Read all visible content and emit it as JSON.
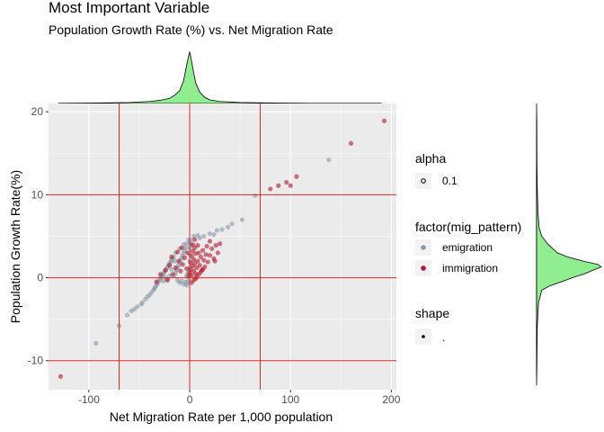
{
  "chart_data": {
    "type": "scatter",
    "title": "Most Important Variable",
    "subtitle": "Population Growth Rate (%) vs. Net Migration Rate",
    "xlabel": "Net Migration Rate per 1,000 population",
    "ylabel": "Population Growth Rate(%)",
    "xlim": [
      -140,
      205
    ],
    "ylim": [
      -13.5,
      21
    ],
    "x_ticks": [
      -100,
      0,
      100,
      200
    ],
    "y_ticks": [
      -10,
      0,
      10,
      20
    ],
    "grid": true,
    "reference_lines": {
      "vertical": [
        -70,
        0,
        70
      ],
      "horizontal": [
        0,
        10,
        -10
      ],
      "color": "#d62728"
    },
    "colors": {
      "emigration": "#8a97a6",
      "immigration": "#b2182b",
      "density_fill": "#90ee90",
      "panel": "#ebebeb"
    },
    "series": [
      {
        "name": "emigration",
        "points": [
          [
            -93,
            -7.9
          ],
          [
            -70,
            -5.8
          ],
          [
            -58,
            -4.0
          ],
          [
            -52,
            -3.5
          ],
          [
            -47,
            -3.0
          ],
          [
            -44,
            -2.6
          ],
          [
            -42,
            -2.3
          ],
          [
            -40,
            -2.1
          ],
          [
            -38,
            -1.8
          ],
          [
            -36,
            -1.5
          ],
          [
            -35,
            -1.3
          ],
          [
            -34,
            -1.1
          ],
          [
            -33,
            -0.9
          ],
          [
            -32,
            -0.7
          ],
          [
            -31,
            -0.5
          ],
          [
            -30,
            -0.3
          ],
          [
            -29,
            -0.1
          ],
          [
            -28,
            0.1
          ],
          [
            -27,
            0.3
          ],
          [
            -26,
            0.5
          ],
          [
            -25,
            0.7
          ],
          [
            -24,
            0.9
          ],
          [
            -23,
            1.1
          ],
          [
            -22,
            1.3
          ],
          [
            -21,
            1.5
          ],
          [
            -20,
            1.7
          ],
          [
            -19,
            1.9
          ],
          [
            -18,
            2.1
          ],
          [
            -17,
            2.3
          ],
          [
            -16,
            2.5
          ],
          [
            -15,
            0.3
          ],
          [
            -14,
            0.6
          ],
          [
            -13,
            0.9
          ],
          [
            -12,
            1.2
          ],
          [
            -11,
            1.5
          ],
          [
            -10,
            1.8
          ],
          [
            -9,
            2.1
          ],
          [
            -8,
            2.4
          ],
          [
            -7,
            2.7
          ],
          [
            -6,
            3.0
          ],
          [
            -5,
            3.3
          ],
          [
            -4,
            3.6
          ],
          [
            -3,
            0.2
          ],
          [
            -2,
            0.5
          ],
          [
            -1,
            0.8
          ],
          [
            -12,
            -0.3
          ],
          [
            -10,
            -0.6
          ],
          [
            -8,
            -0.4
          ],
          [
            -6,
            -0.8
          ],
          [
            -4,
            -0.5
          ],
          [
            -3,
            -0.9
          ],
          [
            -2,
            -0.6
          ],
          [
            -1,
            -0.3
          ],
          [
            0,
            0.4
          ],
          [
            0,
            1.2
          ],
          [
            0,
            2.0
          ],
          [
            0,
            2.8
          ],
          [
            0,
            3.6
          ],
          [
            0,
            4.2
          ],
          [
            1,
            4.5
          ],
          [
            2,
            3.9
          ],
          [
            -15,
            2.0
          ],
          [
            -18,
            1.0
          ],
          [
            -20,
            0.2
          ],
          [
            -22,
            -0.2
          ],
          [
            -24,
            0.0
          ],
          [
            -26,
            -0.4
          ],
          [
            -14,
            3.0
          ],
          [
            -10,
            3.5
          ],
          [
            -6,
            4.0
          ],
          [
            -3,
            4.1
          ],
          [
            -1,
            4.6
          ],
          [
            4,
            5.0
          ],
          [
            8,
            5.1
          ],
          [
            10,
            4.8
          ],
          [
            14,
            5.0
          ],
          [
            20,
            5.3
          ],
          [
            24,
            5.2
          ],
          [
            27,
            5.7
          ],
          [
            32,
            5.8
          ],
          [
            38,
            6.1
          ],
          [
            42,
            6.5
          ],
          [
            52,
            7.0
          ],
          [
            65,
            9.9
          ],
          [
            138,
            14.2
          ],
          [
            -62,
            -4.5
          ],
          [
            -55,
            -3.8
          ],
          [
            -48,
            -3.2
          ]
        ]
      },
      {
        "name": "immigration",
        "points": [
          [
            -128,
            -11.9
          ],
          [
            -24,
            0.9
          ],
          [
            -20,
            1.5
          ],
          [
            -17,
            0.4
          ],
          [
            -14,
            1.2
          ],
          [
            -11,
            2.0
          ],
          [
            -9,
            0.8
          ],
          [
            -7,
            1.6
          ],
          [
            -5,
            2.4
          ],
          [
            -3,
            1.1
          ],
          [
            -2,
            3.0
          ],
          [
            -1,
            0.2
          ],
          [
            0,
            0.6
          ],
          [
            1,
            1.0
          ],
          [
            1,
            1.8
          ],
          [
            2,
            0.3
          ],
          [
            2,
            2.6
          ],
          [
            3,
            1.4
          ],
          [
            3,
            3.2
          ],
          [
            4,
            0.8
          ],
          [
            4,
            2.2
          ],
          [
            5,
            1.7
          ],
          [
            5,
            3.6
          ],
          [
            6,
            0.5
          ],
          [
            6,
            2.9
          ],
          [
            7,
            1.2
          ],
          [
            8,
            2.0
          ],
          [
            9,
            3.0
          ],
          [
            10,
            1.5
          ],
          [
            11,
            2.5
          ],
          [
            12,
            0.9
          ],
          [
            13,
            3.3
          ],
          [
            14,
            2.1
          ],
          [
            15,
            1.3
          ],
          [
            16,
            2.8
          ],
          [
            17,
            3.8
          ],
          [
            18,
            1.9
          ],
          [
            20,
            2.7
          ],
          [
            22,
            3.5
          ],
          [
            24,
            2.3
          ],
          [
            26,
            3.9
          ],
          [
            28,
            3.0
          ],
          [
            30,
            4.1
          ],
          [
            7,
            0.1
          ],
          [
            9,
            0.4
          ],
          [
            11,
            0.7
          ],
          [
            13,
            1.0
          ],
          [
            2,
            -0.6
          ],
          [
            4,
            -0.3
          ],
          [
            6,
            -0.1
          ],
          [
            20,
            4.4
          ],
          [
            25,
            2.0
          ],
          [
            80,
            10.7
          ],
          [
            88,
            11.1
          ],
          [
            96,
            11.5
          ],
          [
            100,
            11.1
          ],
          [
            106,
            12.2
          ],
          [
            160,
            16.2
          ],
          [
            193,
            18.9
          ],
          [
            -33,
            -0.5
          ],
          [
            -29,
            0.4
          ],
          [
            -22,
            -0.3
          ],
          [
            -18,
            2.5
          ],
          [
            -12,
            3.1
          ],
          [
            -8,
            3.6
          ],
          [
            3,
            4.0
          ],
          [
            5,
            4.6
          ],
          [
            8,
            3.9
          ]
        ]
      }
    ],
    "legend": {
      "placement": "right",
      "groups": [
        {
          "title": "alpha",
          "entries": [
            {
              "label": "0.1"
            }
          ]
        },
        {
          "title": "factor(mig_pattern)",
          "entries": [
            {
              "label": "emigration"
            },
            {
              "label": "immigration"
            }
          ]
        },
        {
          "title": "shape",
          "entries": [
            {
              "label": "."
            }
          ]
        }
      ]
    },
    "marginal_x_density": [
      [
        -130,
        0.005
      ],
      [
        -90,
        0.01
      ],
      [
        -60,
        0.02
      ],
      [
        -40,
        0.04
      ],
      [
        -30,
        0.06
      ],
      [
        -20,
        0.1
      ],
      [
        -15,
        0.16
      ],
      [
        -10,
        0.25
      ],
      [
        -6,
        0.45
      ],
      [
        -3,
        0.75
      ],
      [
        -1,
        0.93
      ],
      [
        0,
        1.0
      ],
      [
        1,
        0.92
      ],
      [
        3,
        0.7
      ],
      [
        6,
        0.4
      ],
      [
        10,
        0.22
      ],
      [
        15,
        0.12
      ],
      [
        20,
        0.07
      ],
      [
        30,
        0.04
      ],
      [
        50,
        0.02
      ],
      [
        80,
        0.01
      ],
      [
        120,
        0.005
      ],
      [
        190,
        0.003
      ]
    ],
    "marginal_y_density": [
      [
        -13,
        0.0
      ],
      [
        -10,
        0.005
      ],
      [
        -6,
        0.01
      ],
      [
        -3,
        0.03
      ],
      [
        -1.5,
        0.08
      ],
      [
        -1,
        0.2
      ],
      [
        -0.3,
        0.45
      ],
      [
        0,
        0.55
      ],
      [
        0.5,
        0.75
      ],
      [
        1,
        0.9
      ],
      [
        1.3,
        1.0
      ],
      [
        1.6,
        0.95
      ],
      [
        2,
        0.72
      ],
      [
        2.5,
        0.48
      ],
      [
        3,
        0.32
      ],
      [
        4,
        0.18
      ],
      [
        5,
        0.08
      ],
      [
        6,
        0.04
      ],
      [
        8,
        0.02
      ],
      [
        11,
        0.01
      ],
      [
        14,
        0.005
      ],
      [
        19,
        0.003
      ],
      [
        21,
        0.0
      ]
    ]
  }
}
